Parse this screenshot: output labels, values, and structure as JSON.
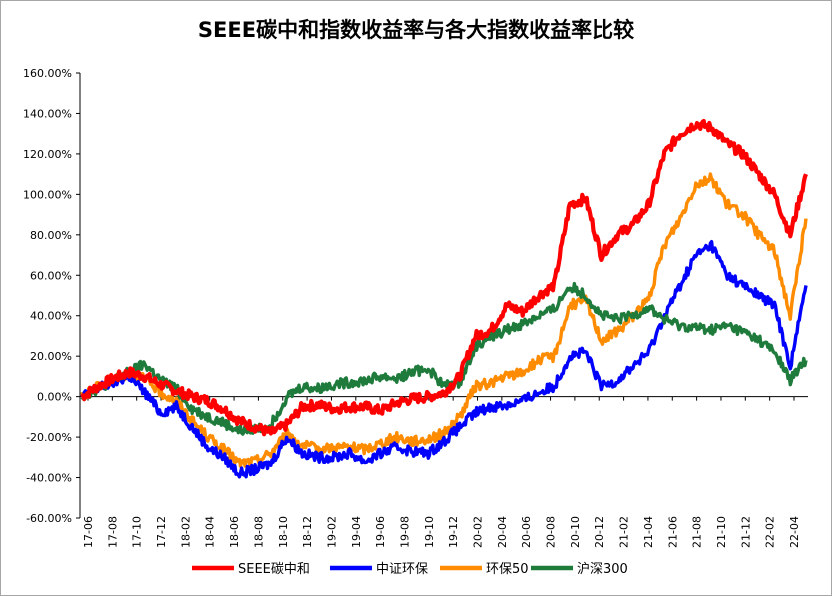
{
  "chart_data": {
    "type": "line",
    "title": "SEEE碳中和指数收益率与各大指数收益率比较",
    "xlabel": "",
    "ylabel": "",
    "ylim": [
      -0.6,
      1.6
    ],
    "y_ticks": [
      "160.00%",
      "140.00%",
      "120.00%",
      "100.00%",
      "80.00%",
      "60.00%",
      "40.00%",
      "20.00%",
      "0.00%",
      "-20.00%",
      "-40.00%",
      "-60.00%"
    ],
    "x_ticks": [
      "17-06",
      "17-08",
      "17-10",
      "17-12",
      "18-02",
      "18-04",
      "18-06",
      "18-08",
      "18-10",
      "18-12",
      "19-02",
      "19-04",
      "19-06",
      "19-08",
      "19-10",
      "19-12",
      "20-02",
      "20-04",
      "20-06",
      "20-08",
      "20-10",
      "20-12",
      "21-02",
      "21-04",
      "21-06",
      "21-08",
      "21-10",
      "21-12",
      "22-02",
      "22-04"
    ],
    "legend_position": "bottom",
    "grid": false,
    "series": [
      {
        "name": "SEEE碳中和",
        "color": "#ff0000",
        "values": [
          0.0,
          0.05,
          0.09,
          0.12,
          0.1,
          0.06,
          0.03,
          0.0,
          -0.02,
          -0.06,
          -0.12,
          -0.15,
          -0.18,
          -0.14,
          -0.05,
          -0.04,
          -0.06,
          -0.05,
          -0.05,
          -0.07,
          -0.03,
          -0.01,
          0.0,
          0.02,
          0.1,
          0.3,
          0.33,
          0.45,
          0.42,
          0.5,
          0.55,
          0.95,
          0.98,
          0.7,
          0.8,
          0.85,
          0.95,
          1.2,
          1.3,
          1.35,
          1.33,
          1.25,
          1.2,
          1.1,
          1.0,
          0.8,
          1.1
        ]
      },
      {
        "name": "中证环保",
        "color": "#0000ff",
        "values": [
          0.0,
          0.04,
          0.07,
          0.1,
          0.02,
          -0.08,
          -0.05,
          -0.15,
          -0.25,
          -0.3,
          -0.38,
          -0.36,
          -0.33,
          -0.2,
          -0.28,
          -0.3,
          -0.3,
          -0.28,
          -0.32,
          -0.28,
          -0.25,
          -0.27,
          -0.28,
          -0.22,
          -0.15,
          -0.08,
          -0.05,
          -0.04,
          -0.02,
          0.02,
          0.05,
          0.2,
          0.22,
          0.05,
          0.08,
          0.15,
          0.22,
          0.4,
          0.55,
          0.7,
          0.75,
          0.6,
          0.55,
          0.5,
          0.45,
          0.15,
          0.55
        ]
      },
      {
        "name": "环保50",
        "color": "#ff8c00",
        "values": [
          0.0,
          0.05,
          0.08,
          0.12,
          0.09,
          0.02,
          -0.02,
          -0.12,
          -0.2,
          -0.26,
          -0.33,
          -0.32,
          -0.28,
          -0.18,
          -0.24,
          -0.26,
          -0.25,
          -0.25,
          -0.26,
          -0.23,
          -0.2,
          -0.22,
          -0.21,
          -0.18,
          -0.1,
          0.05,
          0.07,
          0.1,
          0.12,
          0.18,
          0.2,
          0.45,
          0.48,
          0.28,
          0.32,
          0.4,
          0.48,
          0.75,
          0.88,
          1.05,
          1.08,
          0.95,
          0.9,
          0.8,
          0.72,
          0.4,
          0.88
        ]
      },
      {
        "name": "沪深300",
        "color": "#1e7b3c",
        "values": [
          0.0,
          0.04,
          0.08,
          0.12,
          0.16,
          0.08,
          0.04,
          -0.06,
          -0.1,
          -0.13,
          -0.17,
          -0.16,
          -0.14,
          0.0,
          0.05,
          0.04,
          0.06,
          0.07,
          0.08,
          0.1,
          0.09,
          0.12,
          0.14,
          0.05,
          0.07,
          0.25,
          0.3,
          0.33,
          0.36,
          0.4,
          0.43,
          0.55,
          0.5,
          0.4,
          0.38,
          0.4,
          0.44,
          0.38,
          0.35,
          0.34,
          0.33,
          0.35,
          0.32,
          0.28,
          0.22,
          0.08,
          0.18
        ]
      }
    ]
  }
}
